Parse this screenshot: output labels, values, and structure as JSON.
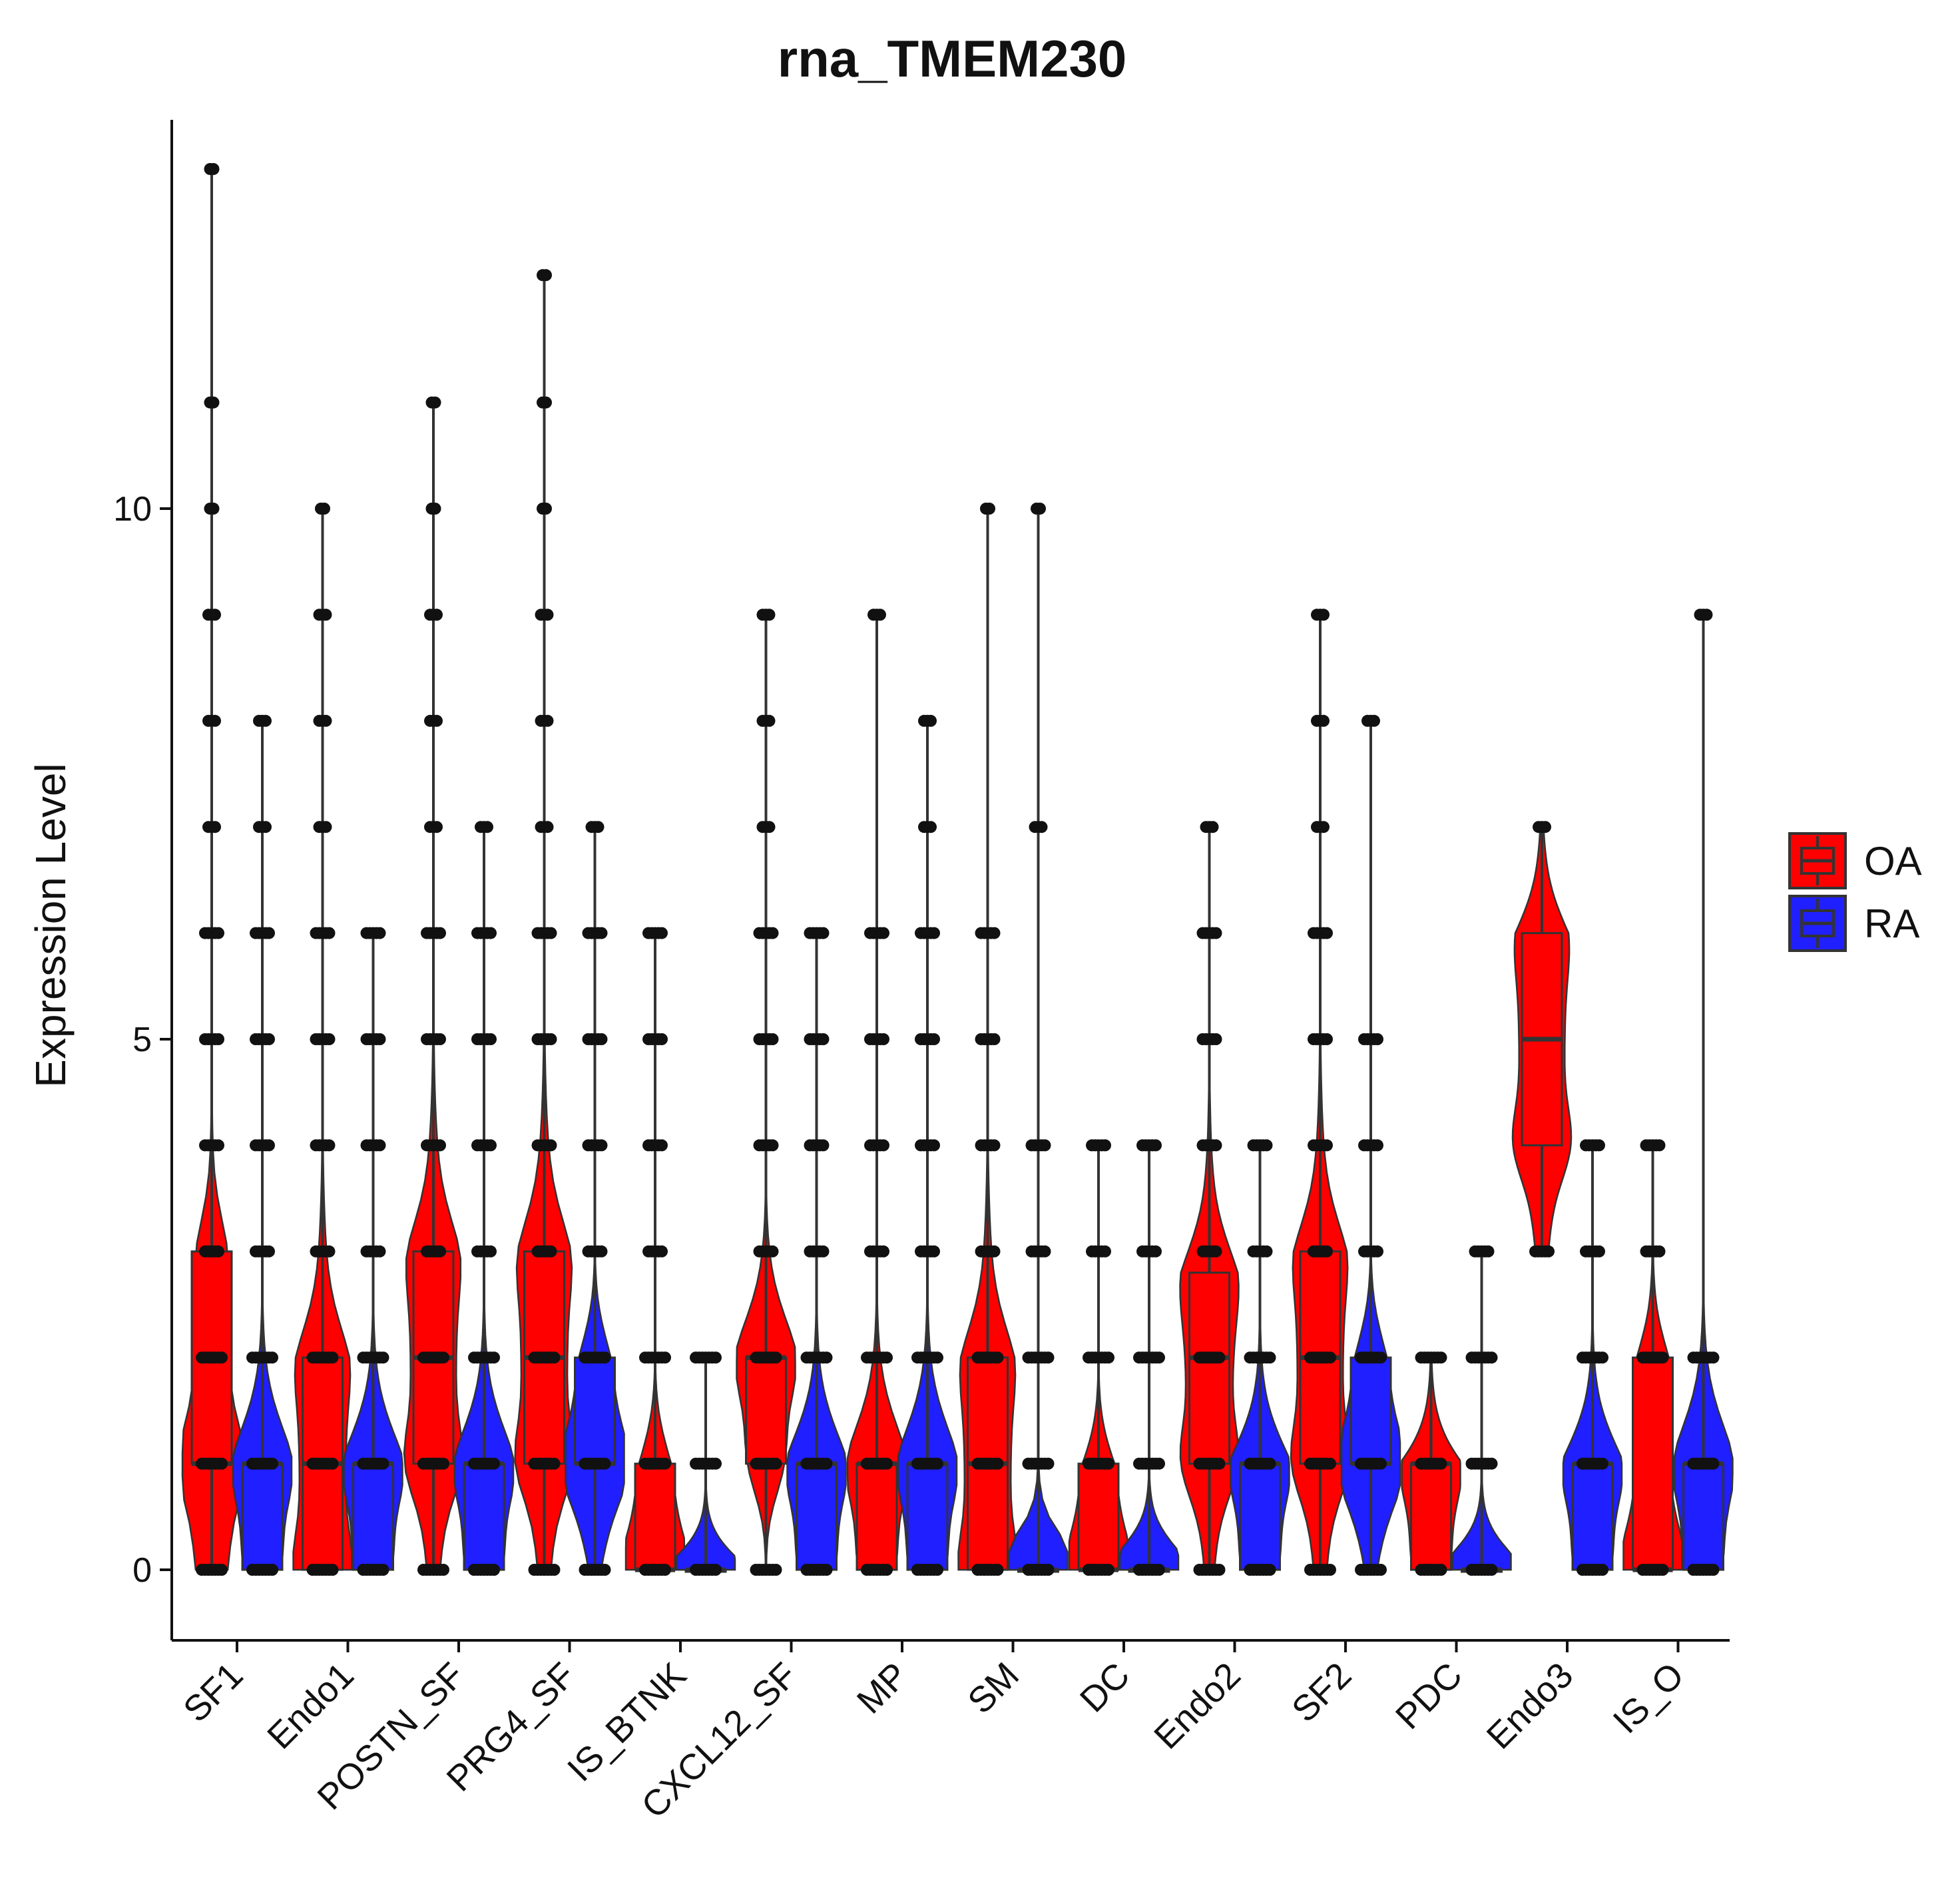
{
  "chart_data": {
    "type": "violin",
    "title": "rna_TMEM230",
    "xlabel": "",
    "ylabel": "Expression Level",
    "ylim": [
      -0.5,
      13.8
    ],
    "yticks": [
      0,
      5,
      10
    ],
    "legend": {
      "position": "right",
      "entries": [
        {
          "name": "OA",
          "color": "#FF0000"
        },
        {
          "name": "RA",
          "color": "#1F1FFF"
        }
      ]
    },
    "categories": [
      "SF1",
      "Endo1",
      "POSTN_SF",
      "PRG4_SF",
      "IS_BTNK",
      "CXCL12_SF",
      "MP",
      "SM",
      "DC",
      "Endo2",
      "SF2",
      "PDC",
      "Endo3",
      "IS_O"
    ],
    "series": [
      {
        "name": "OA",
        "color": "#FF0000",
        "groups": [
          {
            "category": "SF1",
            "min": 0,
            "q1": 1,
            "median": 1,
            "q3": 3,
            "max": 13.2,
            "points": [
              0,
              1,
              2,
              3,
              4,
              5,
              6,
              7,
              8,
              9,
              10,
              11,
              13.2
            ]
          },
          {
            "category": "Endo1",
            "min": 0,
            "q1": 0,
            "median": 1,
            "q3": 2,
            "max": 10,
            "points": [
              0,
              1,
              2,
              3,
              4,
              5,
              6,
              7,
              8,
              9,
              10
            ]
          },
          {
            "category": "POSTN_SF",
            "min": 0,
            "q1": 1,
            "median": 2,
            "q3": 3,
            "max": 11,
            "points": [
              0,
              1,
              2,
              3,
              4,
              5,
              6,
              7,
              8,
              9,
              10,
              11
            ]
          },
          {
            "category": "PRG4_SF",
            "min": 0,
            "q1": 1,
            "median": 2,
            "q3": 3,
            "max": 12.2,
            "points": [
              0,
              1,
              2,
              3,
              4,
              5,
              6,
              7,
              8,
              9,
              10,
              11,
              12.2
            ]
          },
          {
            "category": "IS_BTNK",
            "min": 0,
            "q1": 0,
            "median": 0,
            "q3": 1,
            "max": 6,
            "points": [
              0,
              1,
              2,
              3,
              4,
              5,
              6
            ]
          },
          {
            "category": "CXCL12_SF",
            "min": 0,
            "q1": 1,
            "median": 2,
            "q3": 2,
            "max": 9,
            "points": [
              0,
              1,
              2,
              3,
              4,
              5,
              6,
              7,
              8,
              9
            ]
          },
          {
            "category": "MP",
            "min": 0,
            "q1": 0,
            "median": 1,
            "q3": 1,
            "max": 9,
            "points": [
              0,
              1,
              2,
              3,
              4,
              5,
              6,
              9
            ]
          },
          {
            "category": "SM",
            "min": 0,
            "q1": 0,
            "median": 1,
            "q3": 2,
            "max": 10,
            "points": [
              0,
              1,
              2,
              3,
              4,
              5,
              6,
              10
            ]
          },
          {
            "category": "DC",
            "min": 0,
            "q1": 0,
            "median": 0,
            "q3": 1,
            "max": 4,
            "points": [
              0,
              1,
              2,
              3,
              4
            ]
          },
          {
            "category": "Endo2",
            "min": 0,
            "q1": 1,
            "median": 2,
            "q3": 2.8,
            "max": 7,
            "points": [
              0,
              1,
              2,
              3,
              4,
              5,
              6,
              7
            ]
          },
          {
            "category": "SF2",
            "min": 0,
            "q1": 1,
            "median": 2,
            "q3": 3,
            "max": 9,
            "points": [
              0,
              1,
              2,
              3,
              4,
              5,
              6,
              7,
              8,
              9
            ]
          },
          {
            "category": "PDC",
            "min": 0,
            "q1": 0,
            "median": 1,
            "q3": 1,
            "max": 2,
            "points": [
              0,
              1,
              2
            ]
          },
          {
            "category": "Endo3",
            "min": 3,
            "q1": 4,
            "median": 5,
            "q3": 6,
            "max": 7,
            "points": [
              3,
              7
            ]
          },
          {
            "category": "IS_O",
            "min": 0,
            "q1": 0,
            "median": 0,
            "q3": 2,
            "max": 4,
            "points": [
              0,
              2,
              3,
              4
            ]
          }
        ]
      },
      {
        "name": "RA",
        "color": "#1F1FFF",
        "groups": [
          {
            "category": "SF1",
            "min": 0,
            "q1": 0,
            "median": 1,
            "q3": 1,
            "max": 8,
            "points": [
              0,
              1,
              2,
              3,
              4,
              5,
              6,
              7,
              8
            ]
          },
          {
            "category": "Endo1",
            "min": 0,
            "q1": 0,
            "median": 1,
            "q3": 1,
            "max": 6,
            "points": [
              0,
              1,
              2,
              3,
              4,
              5,
              6
            ]
          },
          {
            "category": "POSTN_SF",
            "min": 0,
            "q1": 0,
            "median": 1,
            "q3": 1,
            "max": 7,
            "points": [
              0,
              1,
              2,
              3,
              4,
              5,
              6,
              7
            ]
          },
          {
            "category": "PRG4_SF",
            "min": 0,
            "q1": 1,
            "median": 1,
            "q3": 2,
            "max": 7,
            "points": [
              0,
              1,
              2,
              3,
              4,
              5,
              6,
              7
            ]
          },
          {
            "category": "IS_BTNK",
            "min": 0,
            "q1": 0,
            "median": 0,
            "q3": 0,
            "max": 2,
            "points": [
              0,
              1,
              2
            ]
          },
          {
            "category": "CXCL12_SF",
            "min": 0,
            "q1": 0,
            "median": 1,
            "q3": 1,
            "max": 6,
            "points": [
              0,
              1,
              2,
              3,
              4,
              5,
              6
            ]
          },
          {
            "category": "MP",
            "min": 0,
            "q1": 0,
            "median": 1,
            "q3": 1,
            "max": 8,
            "points": [
              0,
              1,
              2,
              3,
              4,
              5,
              6,
              7,
              8
            ]
          },
          {
            "category": "SM",
            "min": 0,
            "q1": 0,
            "median": 0,
            "q3": 0,
            "max": 10,
            "points": [
              0,
              1,
              2,
              3,
              4,
              7,
              10
            ]
          },
          {
            "category": "DC",
            "min": 0,
            "q1": 0,
            "median": 0,
            "q3": 0,
            "max": 4,
            "points": [
              0,
              1,
              2,
              3,
              4
            ]
          },
          {
            "category": "Endo2",
            "min": 0,
            "q1": 0,
            "median": 1,
            "q3": 1,
            "max": 4,
            "points": [
              0,
              1,
              2,
              3,
              4
            ]
          },
          {
            "category": "SF2",
            "min": 0,
            "q1": 1,
            "median": 1,
            "q3": 2,
            "max": 8,
            "points": [
              0,
              1,
              2,
              3,
              4,
              5,
              8
            ]
          },
          {
            "category": "PDC",
            "min": 0,
            "q1": 0,
            "median": 0,
            "q3": 0,
            "max": 3,
            "points": [
              0,
              1,
              2,
              3
            ]
          },
          {
            "category": "Endo3",
            "min": 0,
            "q1": 0,
            "median": 1,
            "q3": 1,
            "max": 4,
            "points": [
              0,
              1,
              2,
              3,
              4
            ]
          },
          {
            "category": "IS_O",
            "min": 0,
            "q1": 0,
            "median": 1,
            "q3": 1,
            "max": 9,
            "points": [
              0,
              1,
              2,
              9
            ]
          }
        ]
      }
    ]
  }
}
